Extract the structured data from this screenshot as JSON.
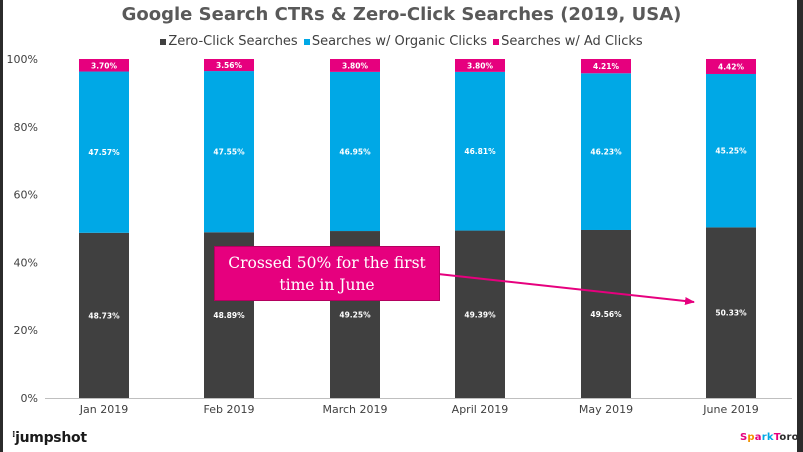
{
  "chart_data": {
    "type": "bar",
    "stacked": true,
    "title": "Google Search CTRs & Zero-Click Searches (2019, USA)",
    "categories": [
      "Jan 2019",
      "Feb 2019",
      "March 2019",
      "April 2019",
      "May 2019",
      "June 2019"
    ],
    "series": [
      {
        "name": "Zero-Click Searches",
        "color": "#404040",
        "values": [
          48.73,
          48.89,
          49.25,
          49.39,
          49.56,
          50.33
        ],
        "labels": [
          "48.73%",
          "48.89%",
          "49.25%",
          "49.39%",
          "49.56%",
          "50.33%"
        ]
      },
      {
        "name": "Searches w/ Organic Clicks",
        "color": "#00a8e6",
        "values": [
          47.57,
          47.55,
          46.95,
          46.81,
          46.23,
          45.25
        ],
        "labels": [
          "47.57%",
          "47.55%",
          "46.95%",
          "46.81%",
          "46.23%",
          "45.25%"
        ]
      },
      {
        "name": "Searches w/ Ad Clicks",
        "color": "#e6007e",
        "values": [
          3.7,
          3.56,
          3.8,
          3.8,
          4.21,
          4.42
        ],
        "labels": [
          "3.70%",
          "3.56%",
          "3.80%",
          "3.80%",
          "4.21%",
          "4.42%"
        ]
      }
    ],
    "ylim": [
      0,
      100
    ],
    "yticks": [
      "0%",
      "20%",
      "40%",
      "60%",
      "80%",
      "100%"
    ],
    "grid": false,
    "legend_position": "top",
    "annotation": "Crossed 50% for the first time in June"
  },
  "branding": {
    "left_logo": "jumpshot",
    "right_logo": "SparkToro"
  }
}
